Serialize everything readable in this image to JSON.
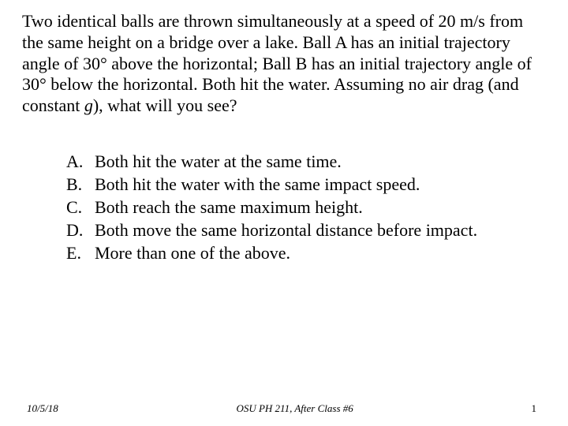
{
  "text_color": "#000000",
  "background_color": "#ffffff",
  "question": {
    "pre_g": "Two identical balls are thrown simultaneously at a speed of 20 m/s from the same height on a bridge over a lake.  Ball A has an initial trajectory angle of 30° above the horizontal; Ball B has an initial trajectory angle of 30° below the horizontal.  Both hit the water. Assuming no air drag (and constant ",
    "g": "g",
    "post_g": "), what will you see?",
    "fontsize": 22
  },
  "options": [
    {
      "letter": "A.",
      "text": "Both hit the water at the same time."
    },
    {
      "letter": "B.",
      "text": "Both hit the water with the same impact speed."
    },
    {
      "letter": "C.",
      "text": "Both reach the same maximum height."
    },
    {
      "letter": "D.",
      "text": "Both move the same horizontal distance before impact."
    },
    {
      "letter": "E.",
      "text": "More than one of the above."
    }
  ],
  "footer": {
    "date": "10/5/18",
    "center": "OSU PH 211, After Class #6",
    "page": "1",
    "fontsize": 13
  }
}
